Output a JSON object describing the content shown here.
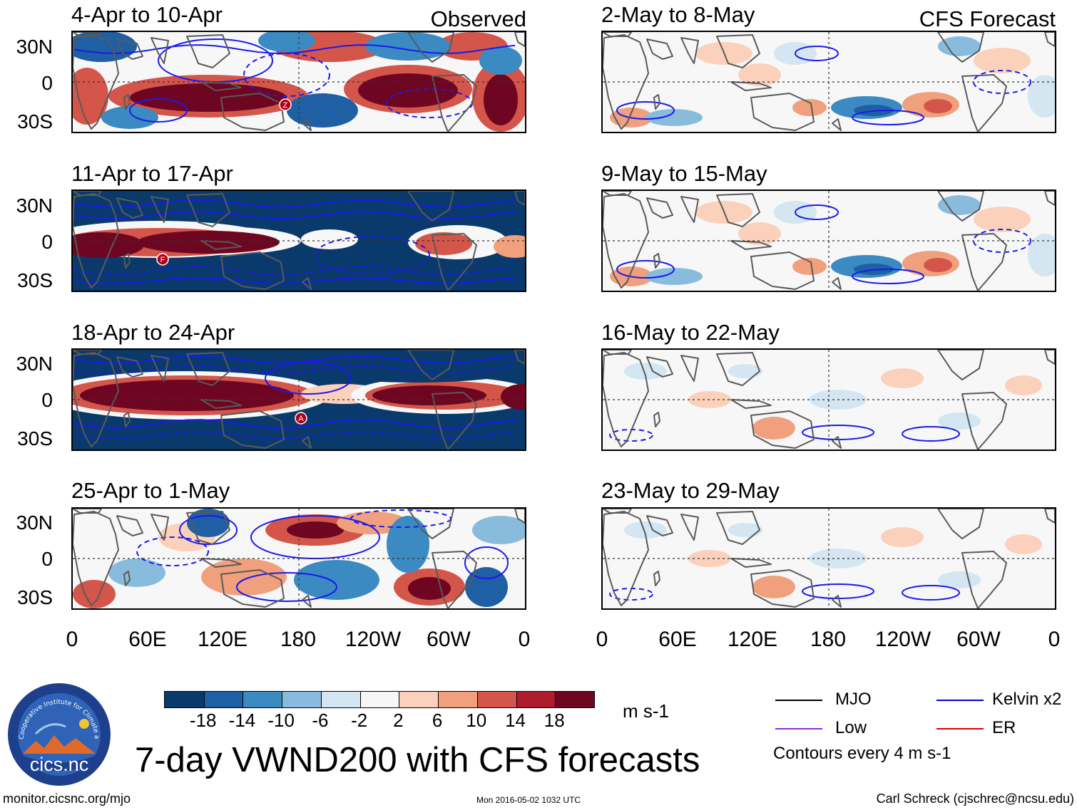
{
  "figure_title": "7-day VWND200 with CFS forecasts",
  "observed_label": "Observed",
  "forecast_label": "CFS Forecast",
  "observed_panels": [
    {
      "title": "4-Apr to 10-Apr",
      "anomaly": "mixed-strong",
      "markers": [
        {
          "letter": "Z"
        }
      ]
    },
    {
      "title": "11-Apr to 17-Apr",
      "anomaly": "saturated-south",
      "markers": [
        {
          "letter": "F"
        }
      ]
    },
    {
      "title": "18-Apr to 24-Apr",
      "anomaly": "saturated-band",
      "markers": [
        {
          "letter": "A"
        }
      ]
    },
    {
      "title": "25-Apr to 1-May",
      "anomaly": "mixed-moderate",
      "markers": []
    }
  ],
  "forecast_panels": [
    {
      "title": "2-May to 8-May",
      "anomaly": "weak-mixed"
    },
    {
      "title": "9-May to 15-May",
      "anomaly": "weak-mixed"
    },
    {
      "title": "16-May to 22-May",
      "anomaly": "very-weak"
    },
    {
      "title": "23-May to 29-May",
      "anomaly": "very-weak"
    }
  ],
  "lat_labels": [
    "30N",
    "0",
    "30S"
  ],
  "lon_labels": [
    "0",
    "60E",
    "120E",
    "180",
    "120W",
    "60W",
    "0"
  ],
  "colorbar": {
    "colors": [
      "#0a3a6b",
      "#1f5fa3",
      "#3b8ac2",
      "#89bcdc",
      "#d3e6f2",
      "#f7f7f7",
      "#fbd1bb",
      "#f0a07c",
      "#d4554a",
      "#ae1d2e",
      "#6e0622"
    ],
    "labels": [
      "-18",
      "-14",
      "-10",
      "-6",
      "-2",
      "2",
      "6",
      "10",
      "14",
      "18"
    ],
    "unit": "m s-1"
  },
  "legend": {
    "items": [
      {
        "label": "MJO",
        "color": "#000000"
      },
      {
        "label": "Kelvin x2",
        "color": "#0000cc"
      },
      {
        "label": "Low",
        "color": "#8a2be2"
      },
      {
        "label": "ER",
        "color": "#dd0000"
      }
    ],
    "note": "Contours every 4 m s-1"
  },
  "logo_text": "cics.nc",
  "logo_ring_text": "Cooperative Institute for Climate and Satellites",
  "footer": {
    "left": "monitor.cicsnc.org/mjo",
    "center": "Mon 2016-05-02 1032 UTC",
    "right": "Carl Schreck (cjschrec@ncsu.edu)"
  }
}
